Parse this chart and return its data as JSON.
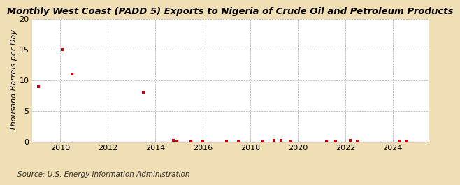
{
  "title": "Monthly West Coast (PADD 5) Exports to Nigeria of Crude Oil and Petroleum Products",
  "ylabel": "Thousand Barrels per Day",
  "source": "Source: U.S. Energy Information Administration",
  "background_color": "#f0deb4",
  "plot_background_color": "#ffffff",
  "ylim": [
    0,
    20
  ],
  "yticks": [
    0,
    5,
    10,
    15,
    20
  ],
  "xlim": [
    2008.8,
    2025.5
  ],
  "xticks": [
    2010,
    2012,
    2014,
    2016,
    2018,
    2020,
    2022,
    2024
  ],
  "marker_color": "#cc0000",
  "marker": "s",
  "marker_size": 3.5,
  "data_points": [
    [
      2009.08,
      9.0
    ],
    [
      2010.08,
      15.0
    ],
    [
      2010.5,
      11.0
    ],
    [
      2013.5,
      8.0
    ],
    [
      2014.75,
      0.15
    ],
    [
      2014.92,
      0.12
    ],
    [
      2015.5,
      0.12
    ],
    [
      2016.0,
      0.12
    ],
    [
      2017.0,
      0.12
    ],
    [
      2017.5,
      0.12
    ],
    [
      2018.5,
      0.12
    ],
    [
      2019.0,
      0.15
    ],
    [
      2019.3,
      0.15
    ],
    [
      2019.7,
      0.12
    ],
    [
      2021.2,
      0.12
    ],
    [
      2021.6,
      0.12
    ],
    [
      2022.2,
      0.15
    ],
    [
      2022.5,
      0.12
    ],
    [
      2024.3,
      0.12
    ],
    [
      2024.6,
      0.12
    ]
  ],
  "title_fontsize": 9.5,
  "axis_fontsize": 8,
  "source_fontsize": 7.5,
  "grid_color": "#aaaaaa",
  "grid_linestyle": "--",
  "grid_linewidth": 0.5
}
